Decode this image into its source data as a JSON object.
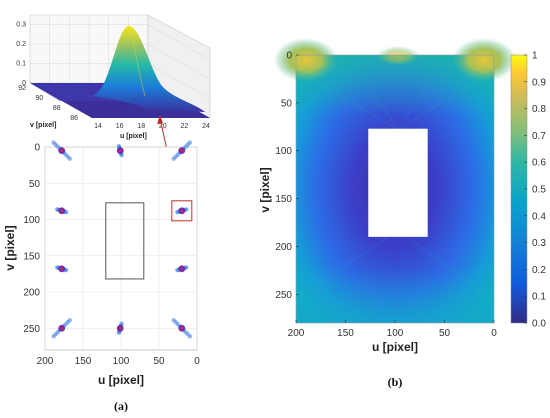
{
  "chart_data": [
    {
      "type": "surface",
      "panel": "inset",
      "xlabel": "u [pixel]",
      "ylabel": "v [pixel]",
      "x_ticks": [
        "14",
        "16",
        "18",
        "20",
        "22",
        "24"
      ],
      "y_ticks": [
        "86",
        "88",
        "90",
        "92"
      ],
      "z_ticks": [
        "0",
        "0.1",
        "0.2",
        "0.3"
      ],
      "peak": {
        "u": 18.5,
        "v": 89,
        "z": 0.34
      },
      "colormap": "parula"
    },
    {
      "type": "scatter",
      "panel": "(a)",
      "xlabel": "u [pixel]",
      "ylabel": "v [pixel]",
      "xlim": [
        200,
        0
      ],
      "ylim": [
        0,
        280
      ],
      "x_ticks": [
        "200",
        "150",
        "100",
        "50",
        "0"
      ],
      "y_ticks": [
        "0",
        "50",
        "100",
        "150",
        "200",
        "250"
      ],
      "grid": true,
      "clusters": [
        {
          "u": 178,
          "v": 5
        },
        {
          "u": 101,
          "v": 5
        },
        {
          "u": 20,
          "v": 5
        },
        {
          "u": 178,
          "v": 88
        },
        {
          "u": 20,
          "v": 88
        },
        {
          "u": 178,
          "v": 168
        },
        {
          "u": 20,
          "v": 168
        },
        {
          "u": 178,
          "v": 250
        },
        {
          "u": 101,
          "v": 250
        },
        {
          "u": 20,
          "v": 250
        }
      ],
      "obstacle": {
        "u": [
          70,
          120
        ],
        "v": [
          77,
          182
        ]
      },
      "highlight": {
        "u": 20,
        "v": 88
      }
    },
    {
      "type": "heatmap",
      "panel": "(b)",
      "xlabel": "u [pixel]",
      "ylabel": "v [pixel]",
      "xlim": [
        200,
        0
      ],
      "ylim": [
        0,
        280
      ],
      "x_ticks": [
        "200",
        "150",
        "100",
        "50",
        "0"
      ],
      "y_ticks": [
        "0",
        "50",
        "100",
        "150",
        "200",
        "250"
      ],
      "obstacle": {
        "u": [
          67,
          127
        ],
        "v": [
          77,
          190
        ]
      },
      "colorbar": {
        "range": [
          0,
          1
        ],
        "ticks": [
          "0.0",
          "0.1",
          "0.2",
          "0.3",
          "0.4",
          "0.5",
          "0.6",
          "0.7",
          "0.8",
          "0.9",
          "1"
        ]
      }
    }
  ],
  "labels": {
    "panel_a": "(a)",
    "panel_b": "(b)"
  }
}
